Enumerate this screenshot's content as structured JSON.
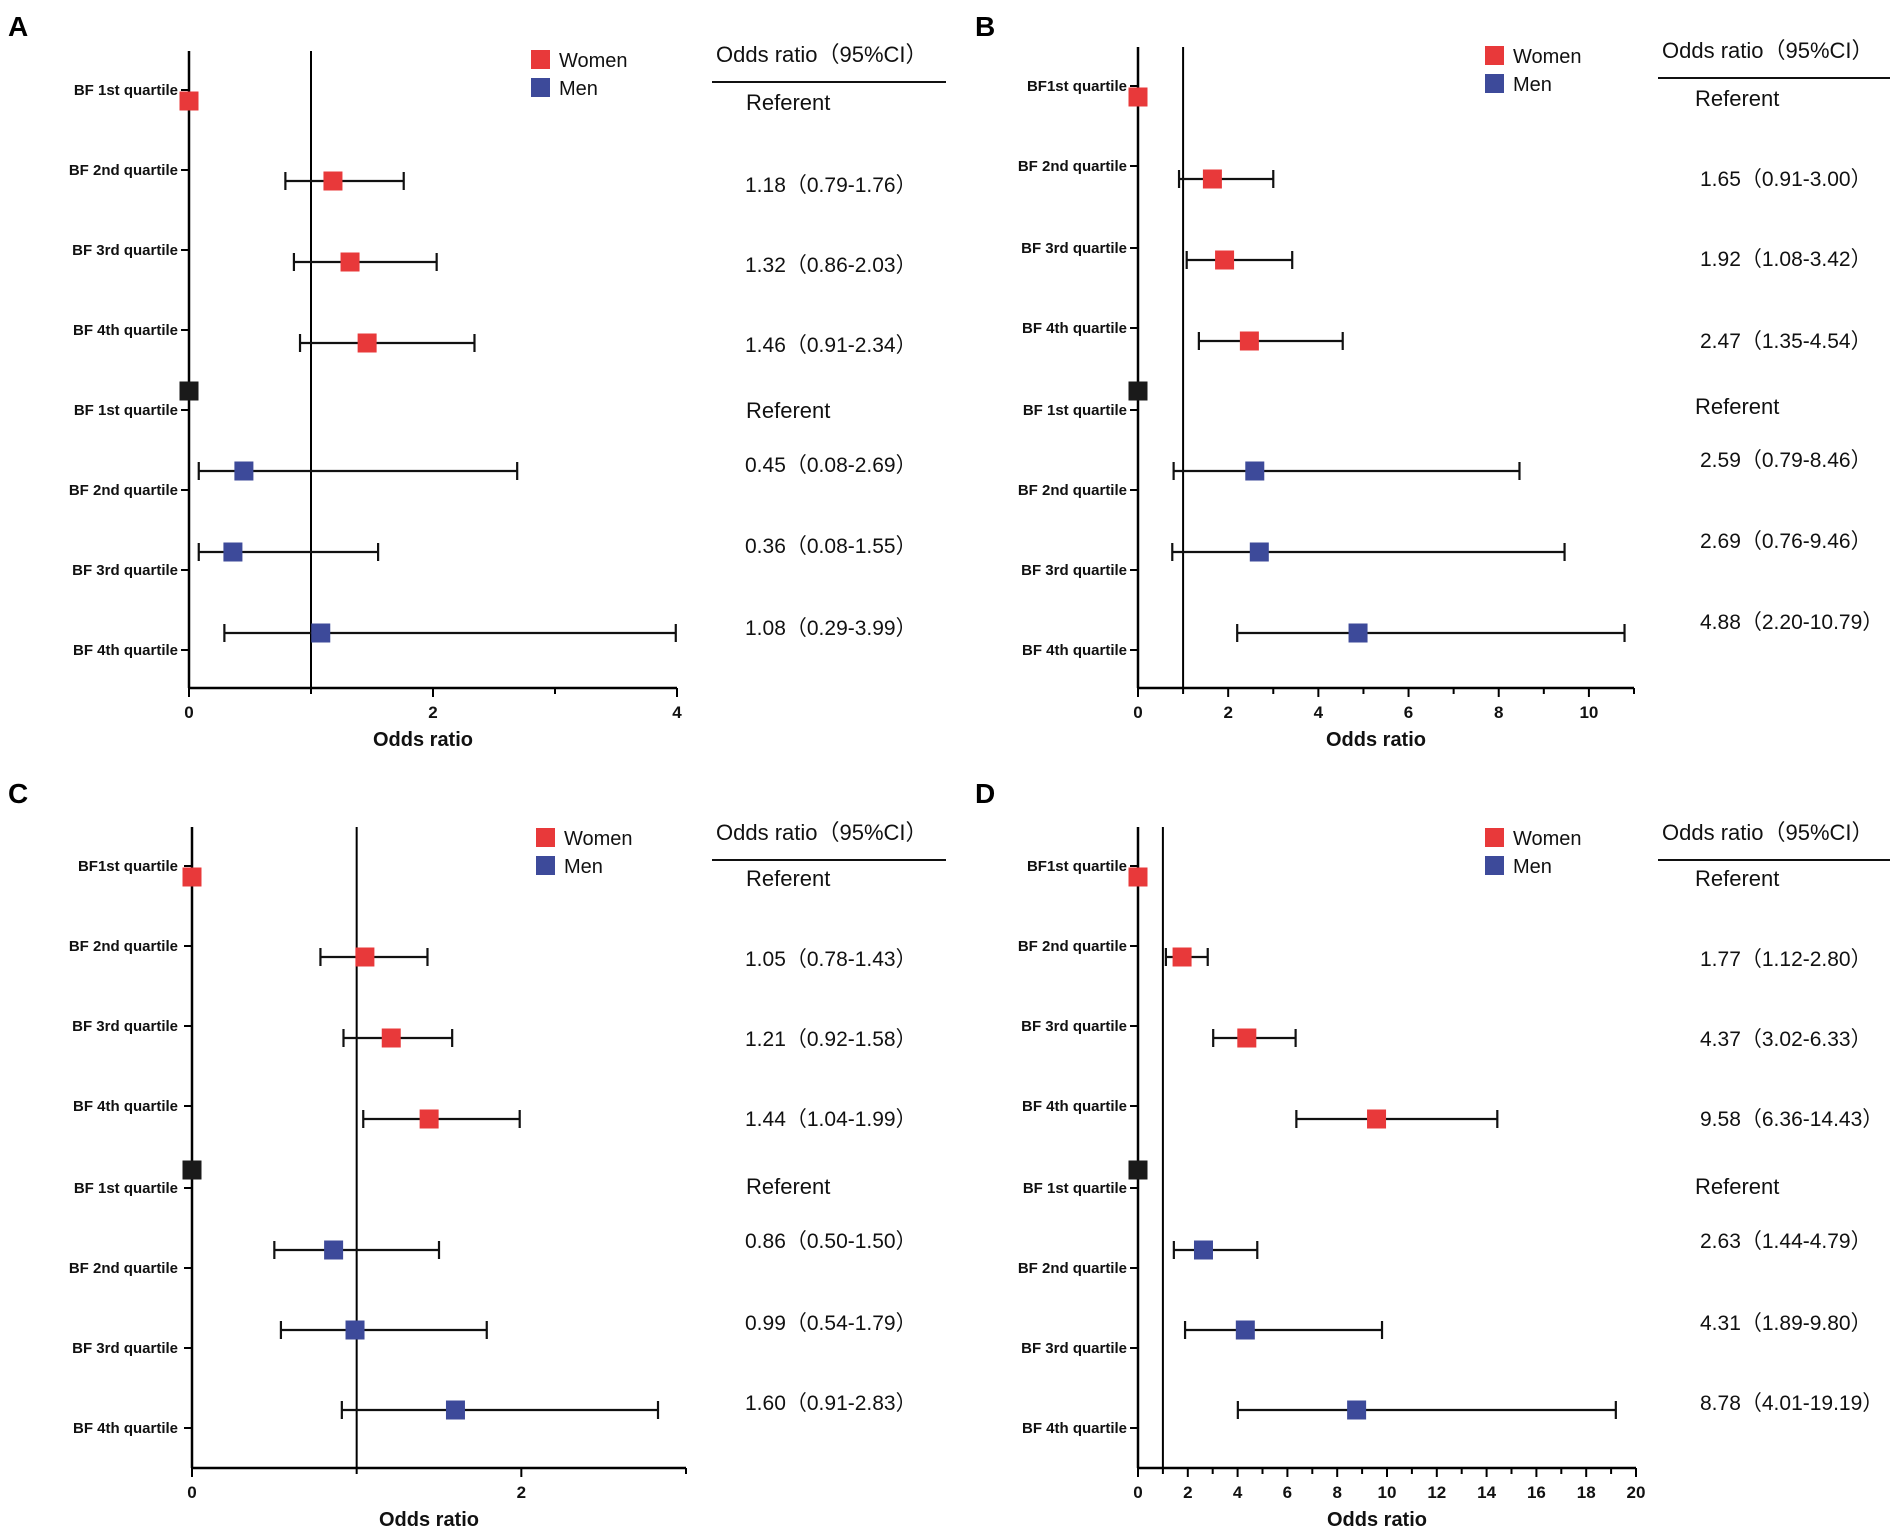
{
  "colors": {
    "women": "#e8393a",
    "men": "#3d4a9a",
    "referent_men": "#1a1a1a",
    "axis": "#000000"
  },
  "legend": {
    "women": "Women",
    "men": "Men"
  },
  "table_header": "Odds ratio（95%CI）",
  "chart_data": [
    {
      "panel": "A",
      "type": "forest",
      "xlabel": "Odds ratio",
      "xlim": [
        0,
        4
      ],
      "xticks": [
        0,
        2,
        4
      ],
      "ref_line": 1,
      "rows": [
        {
          "label": "BF 1st quartile",
          "group": "women",
          "or": 0,
          "lo": null,
          "hi": null,
          "text": "Referent"
        },
        {
          "label": "BF 2nd quartile",
          "group": "women",
          "or": 1.18,
          "lo": 0.79,
          "hi": 1.76,
          "text": "1.18（0.79-1.76）"
        },
        {
          "label": "BF 3rd quartile",
          "group": "women",
          "or": 1.32,
          "lo": 0.86,
          "hi": 2.03,
          "text": "1.32（0.86-2.03）"
        },
        {
          "label": "BF 4th quartile",
          "group": "women",
          "or": 1.46,
          "lo": 0.91,
          "hi": 2.34,
          "text": "1.46（0.91-2.34）"
        },
        {
          "label": "BF 1st quartile",
          "group": "men",
          "or": 0,
          "lo": null,
          "hi": null,
          "text": "Referent"
        },
        {
          "label": "BF 2nd quartile",
          "group": "men",
          "or": 0.45,
          "lo": 0.08,
          "hi": 2.69,
          "text": "0.45（0.08-2.69）"
        },
        {
          "label": "BF 3rd quartile",
          "group": "men",
          "or": 0.36,
          "lo": 0.08,
          "hi": 1.55,
          "text": "0.36（0.08-1.55）"
        },
        {
          "label": "BF 4th quartile",
          "group": "men",
          "or": 1.08,
          "lo": 0.29,
          "hi": 3.99,
          "text": "1.08（0.29-3.99）"
        }
      ]
    },
    {
      "panel": "B",
      "type": "forest",
      "xlabel": "Odds ratio",
      "xlim": [
        0,
        11
      ],
      "xticks": [
        0,
        2,
        4,
        6,
        8,
        10
      ],
      "ref_line": 1,
      "rows": [
        {
          "label": "BF1st quartile",
          "group": "women",
          "or": 0,
          "lo": null,
          "hi": null,
          "text": "Referent"
        },
        {
          "label": "BF 2nd quartile",
          "group": "women",
          "or": 1.65,
          "lo": 0.91,
          "hi": 3.0,
          "text": "1.65（0.91-3.00）"
        },
        {
          "label": "BF 3rd quartile",
          "group": "women",
          "or": 1.92,
          "lo": 1.08,
          "hi": 3.42,
          "text": "1.92（1.08-3.42）"
        },
        {
          "label": "BF 4th quartile",
          "group": "women",
          "or": 2.47,
          "lo": 1.35,
          "hi": 4.54,
          "text": "2.47（1.35-4.54）"
        },
        {
          "label": "BF 1st quartile",
          "group": "men",
          "or": 0,
          "lo": null,
          "hi": null,
          "text": "Referent"
        },
        {
          "label": "BF 2nd quartile",
          "group": "men",
          "or": 2.59,
          "lo": 0.79,
          "hi": 8.46,
          "text": "2.59（0.79-8.46）"
        },
        {
          "label": "BF 3rd quartile",
          "group": "men",
          "or": 2.69,
          "lo": 0.76,
          "hi": 9.46,
          "text": "2.69（0.76-9.46）"
        },
        {
          "label": "BF 4th quartile",
          "group": "men",
          "or": 4.88,
          "lo": 2.2,
          "hi": 10.79,
          "text": "4.88（2.20-10.79）"
        }
      ]
    },
    {
      "panel": "C",
      "type": "forest",
      "xlabel": "Odds ratio",
      "xlim": [
        0,
        3
      ],
      "xticks": [
        0,
        2
      ],
      "ref_line": 1,
      "rows": [
        {
          "label": "BF1st quartile",
          "group": "women",
          "or": 0,
          "lo": null,
          "hi": null,
          "text": "Referent"
        },
        {
          "label": "BF 2nd quartile",
          "group": "women",
          "or": 1.05,
          "lo": 0.78,
          "hi": 1.43,
          "text": "1.05（0.78-1.43）"
        },
        {
          "label": "BF 3rd quartile",
          "group": "women",
          "or": 1.21,
          "lo": 0.92,
          "hi": 1.58,
          "text": "1.21（0.92-1.58）"
        },
        {
          "label": "BF 4th quartile",
          "group": "women",
          "or": 1.44,
          "lo": 1.04,
          "hi": 1.99,
          "text": "1.44（1.04-1.99）"
        },
        {
          "label": "BF 1st quartile",
          "group": "men",
          "or": 0,
          "lo": null,
          "hi": null,
          "text": "Referent"
        },
        {
          "label": "BF 2nd quartile",
          "group": "men",
          "or": 0.86,
          "lo": 0.5,
          "hi": 1.5,
          "text": "0.86（0.50-1.50）"
        },
        {
          "label": "BF 3rd quartile",
          "group": "men",
          "or": 0.99,
          "lo": 0.54,
          "hi": 1.79,
          "text": "0.99（0.54-1.79）"
        },
        {
          "label": "BF 4th quartile",
          "group": "men",
          "or": 1.6,
          "lo": 0.91,
          "hi": 2.83,
          "text": "1.60（0.91-2.83）"
        }
      ]
    },
    {
      "panel": "D",
      "type": "forest",
      "xlabel": "Odds ratio",
      "xlim": [
        0,
        20
      ],
      "xticks": [
        0,
        2,
        4,
        6,
        8,
        10,
        12,
        14,
        16,
        18,
        20
      ],
      "ref_line": 1,
      "rows": [
        {
          "label": "BF1st quartile",
          "group": "women",
          "or": 0,
          "lo": null,
          "hi": null,
          "text": "Referent"
        },
        {
          "label": "BF 2nd quartile",
          "group": "women",
          "or": 1.77,
          "lo": 1.12,
          "hi": 2.8,
          "text": "1.77（1.12-2.80）"
        },
        {
          "label": "BF 3rd quartile",
          "group": "women",
          "or": 4.37,
          "lo": 3.02,
          "hi": 6.33,
          "text": "4.37（3.02-6.33）"
        },
        {
          "label": "BF 4th quartile",
          "group": "women",
          "or": 9.58,
          "lo": 6.36,
          "hi": 14.43,
          "text": "9.58（6.36-14.43）"
        },
        {
          "label": "BF 1st quartile",
          "group": "men",
          "or": 0,
          "lo": null,
          "hi": null,
          "text": "Referent"
        },
        {
          "label": "BF 2nd quartile",
          "group": "men",
          "or": 2.63,
          "lo": 1.44,
          "hi": 4.79,
          "text": "2.63（1.44-4.79）"
        },
        {
          "label": "BF 3rd quartile",
          "group": "men",
          "or": 4.31,
          "lo": 1.89,
          "hi": 9.8,
          "text": "4.31（1.89-9.80）"
        },
        {
          "label": "BF 4th quartile",
          "group": "men",
          "or": 8.78,
          "lo": 4.01,
          "hi": 19.19,
          "text": "8.78（4.01-19.19）"
        }
      ]
    }
  ]
}
